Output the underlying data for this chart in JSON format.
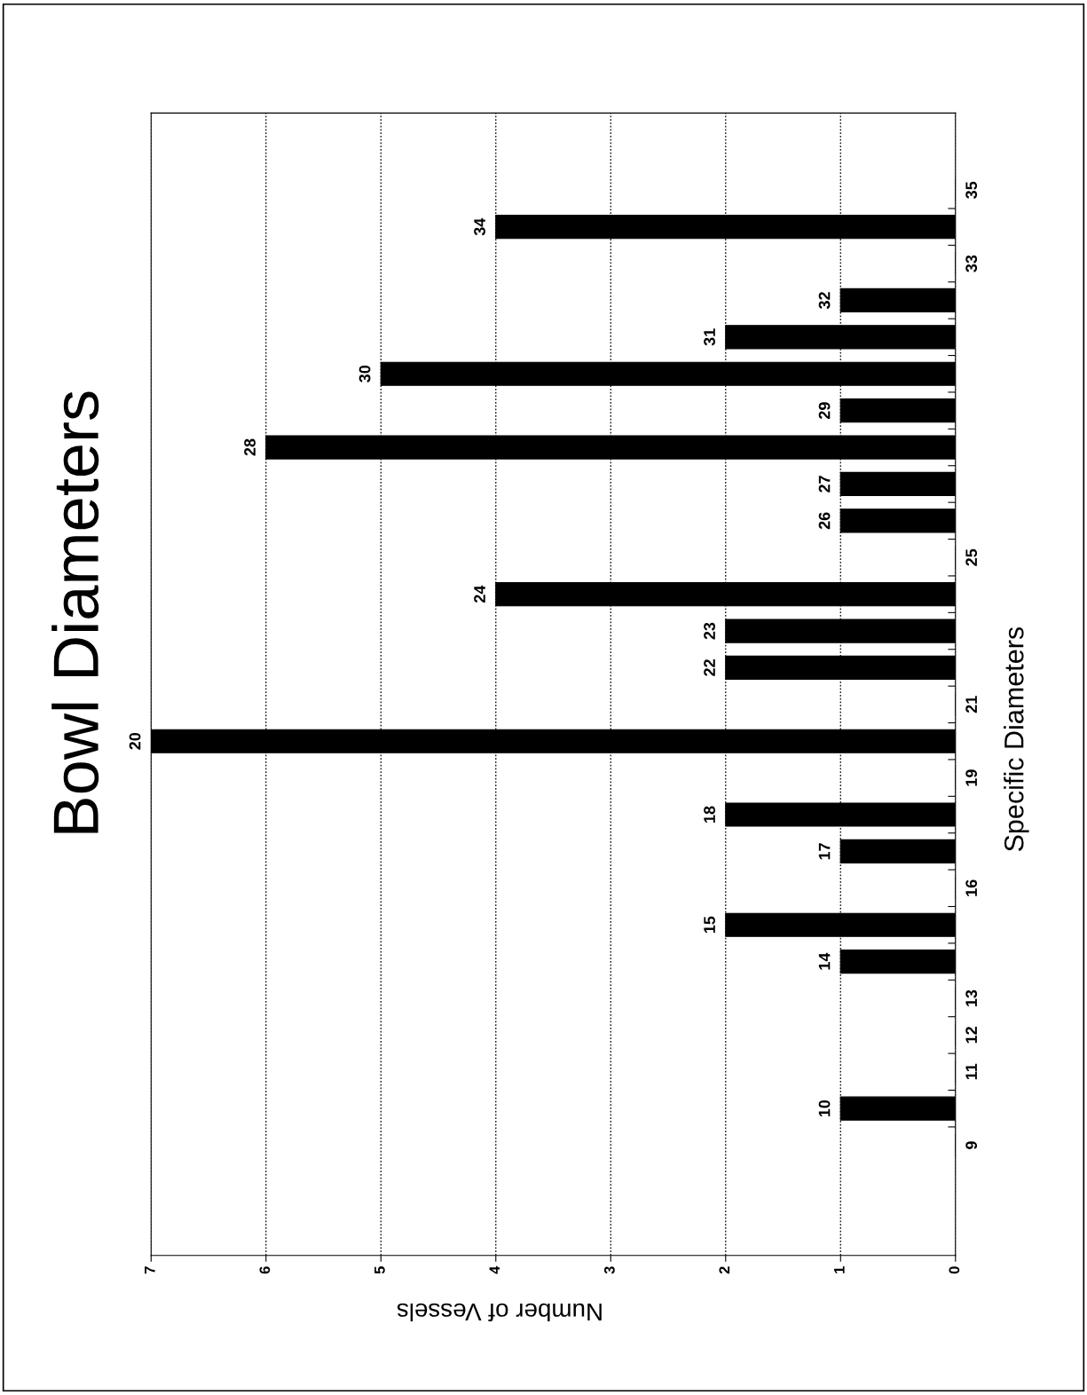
{
  "chart_data": {
    "type": "bar",
    "orientation": "horizontal",
    "title": "Bowl Diameters",
    "xlabel": "Number of Vessels",
    "ylabel": "Specific Diameters",
    "categories": [
      "35",
      "34",
      "33",
      "32",
      "31",
      "30",
      "29",
      "28",
      "27",
      "26",
      "25",
      "24",
      "23",
      "22",
      "21",
      "20",
      "19",
      "18",
      "17",
      "16",
      "15",
      "14",
      "13",
      "12",
      "11",
      "10",
      "9"
    ],
    "values": [
      0,
      4,
      0,
      1,
      2,
      5,
      1,
      6,
      1,
      1,
      0,
      4,
      2,
      2,
      0,
      7,
      0,
      2,
      1,
      0,
      2,
      1,
      0,
      0,
      0,
      1,
      0
    ],
    "color": "#000000",
    "xlim": [
      7,
      0
    ],
    "xticks": [
      0,
      1,
      2,
      3,
      4,
      5,
      6,
      7
    ],
    "grid": "x",
    "legend": false
  }
}
